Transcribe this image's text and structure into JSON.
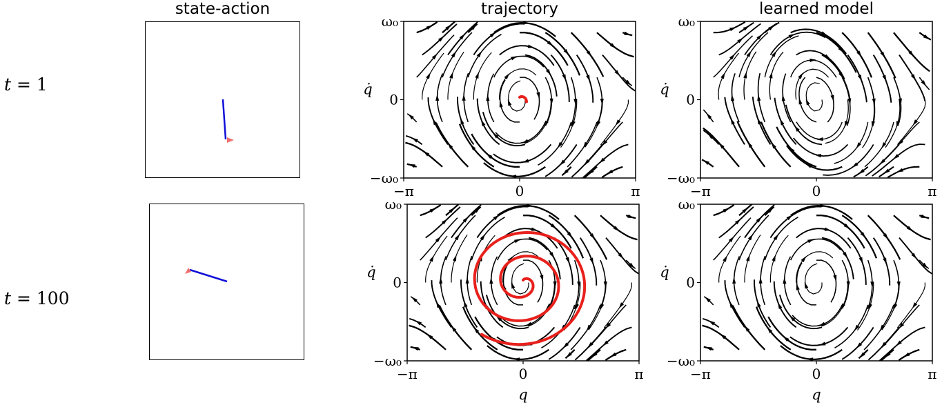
{
  "column_titles": {
    "state_action": "state-action",
    "trajectory": "trajectory",
    "learned_model": "learned model"
  },
  "row_labels": [
    {
      "var": "t",
      "eq": "=",
      "num": "1"
    },
    {
      "var": "t",
      "eq": "=",
      "num": "100"
    }
  ],
  "axes": {
    "xlabel": "q",
    "ylabel": "q̇",
    "xticks": [
      "−π",
      "0",
      "π"
    ],
    "yticks": [
      "ω₀",
      "0",
      "−ω₀"
    ]
  },
  "colors": {
    "streamline": "#000000",
    "trajectory": "#e8201c",
    "pendulum_rod": "#1010d8",
    "action_arrow": "#f07070"
  },
  "state_action": [
    {
      "row": "t = 1",
      "rod_angle_from_vertical_deg": -4,
      "action_direction": "right"
    },
    {
      "row": "t = 100",
      "rod_angle_from_vertical_deg": -73,
      "action_direction": "left"
    }
  ],
  "chart_data": [
    {
      "type": "streamplot",
      "title": "trajectory",
      "row": "t = 1",
      "field": "pendulum",
      "xlabel": "q",
      "ylabel": "q̇",
      "xlim": [
        "−π",
        "π"
      ],
      "ylim": [
        "−ω₀",
        "ω₀"
      ],
      "trajectory": {
        "shape": "tiny spiral near origin",
        "turns": 0.3
      }
    },
    {
      "type": "streamplot",
      "title": "learned model",
      "row": "t = 1",
      "field": "skewed",
      "xlabel": "q",
      "ylabel": "q̇",
      "xlim": [
        "−π",
        "π"
      ],
      "ylim": [
        "−ω₀",
        "ω₀"
      ]
    },
    {
      "type": "streamplot",
      "title": "trajectory",
      "row": "t = 100",
      "field": "pendulum",
      "xlabel": "q",
      "ylabel": "q̇",
      "xlim": [
        "−π",
        "π"
      ],
      "ylim": [
        "−ω₀",
        "ω₀"
      ],
      "trajectory": {
        "shape": "outward spiral from origin",
        "turns": 2.6
      }
    },
    {
      "type": "streamplot",
      "title": "learned model",
      "row": "t = 100",
      "field": "pendulum",
      "xlabel": "q",
      "ylabel": "q̇",
      "xlim": [
        "−π",
        "π"
      ],
      "ylim": [
        "−ω₀",
        "ω₀"
      ]
    }
  ]
}
